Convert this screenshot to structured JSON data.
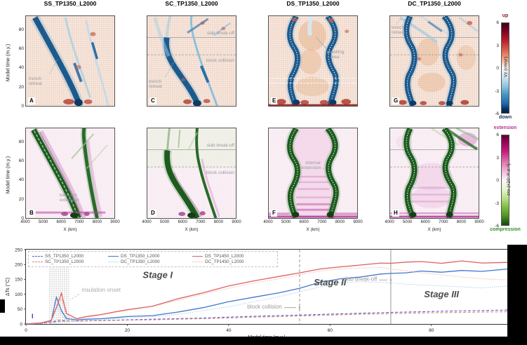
{
  "panels": [
    {
      "letter": "A",
      "title": "SS_TP1350_L2000"
    },
    {
      "letter": "C",
      "title": "SC_TP1350_L2000"
    },
    {
      "letter": "E",
      "title": "DS_TP1350_L2000"
    },
    {
      "letter": "G",
      "title": "DC_TP1350_L2000"
    },
    {
      "letter": "B"
    },
    {
      "letter": "D"
    },
    {
      "letter": "F"
    },
    {
      "letter": "H"
    }
  ],
  "annotations": {
    "trench_retreat": "trench retreat",
    "slab_breakoff": "slab break-off",
    "block_collision": "block collision",
    "upwelling_area": "upwelling area",
    "backarc_extension": "back-arc extension",
    "internal_extension": "internal extension ↓"
  },
  "axes": {
    "row_ylabel": "Model time (m.y.)",
    "row_yticks": [
      "80",
      "60",
      "40",
      "20",
      "0"
    ],
    "row_ytick_t": [
      80,
      60,
      40,
      20,
      0
    ],
    "row2_xlabel": "X (km)",
    "row2_xticks": [
      "4000",
      "5000",
      "6000",
      "7000",
      "8000",
      "9000"
    ]
  },
  "colorbars": [
    {
      "top": "up",
      "bottom": "down",
      "label": "Vz (cm/yr)",
      "ticks": [
        "6",
        "3",
        "0",
        "-3",
        "-6"
      ],
      "top_color": "#8b1a1a",
      "bottom_color": "#1f3864"
    },
    {
      "top": "extension",
      "bottom": "compression",
      "label": "ε̇xx (×10⁻¹⁶ s⁻¹)",
      "ticks": [
        "6",
        "3",
        "0",
        "-3",
        "-6"
      ],
      "top_color": "#b5339c",
      "bottom_color": "#3a8a28"
    }
  ],
  "chart_data": {
    "type": "line",
    "xlabel": "Model time (m.y.)",
    "ylabel": "ΔTs (°C)",
    "xlim": [
      0,
      95
    ],
    "ylim": [
      0,
      250
    ],
    "xticks": [
      0,
      20,
      40,
      60,
      80
    ],
    "yticks": [
      0,
      50,
      100,
      150,
      200,
      250
    ],
    "legend_position": "top-left",
    "panel_letter": "I",
    "x": [
      0,
      3,
      5,
      6,
      7,
      8,
      10,
      12,
      15,
      18,
      20,
      25,
      30,
      35,
      40,
      45,
      50,
      54,
      58,
      62,
      66,
      70,
      72,
      75,
      78,
      82,
      86,
      90,
      95
    ],
    "series": [
      {
        "name": "SS_TP1350_L2000",
        "color": "#5b64c8",
        "style": "dashed",
        "values": [
          0,
          2,
          5,
          8,
          10,
          10,
          10,
          11,
          12,
          13,
          14,
          16,
          18,
          20,
          23,
          26,
          28,
          30,
          32,
          34,
          36,
          38,
          39,
          40,
          41,
          43,
          44,
          45,
          47
        ]
      },
      {
        "name": "SC_TP1350_L2000",
        "color": "#d98585",
        "style": "dashed",
        "values": [
          0,
          2,
          6,
          12,
          14,
          10,
          9,
          10,
          11,
          12,
          13,
          14,
          16,
          18,
          20,
          23,
          25,
          27,
          29,
          31,
          33,
          34,
          35,
          36,
          37,
          38,
          39,
          40,
          41
        ]
      },
      {
        "name": "DS_TP1350_L2000",
        "color": "#4076c9",
        "style": "solid",
        "values": [
          0,
          3,
          10,
          90,
          45,
          18,
          14,
          16,
          18,
          22,
          25,
          28,
          40,
          55,
          75,
          90,
          105,
          120,
          140,
          152,
          158,
          168,
          170,
          172,
          178,
          174,
          180,
          177,
          185
        ]
      },
      {
        "name": "DC_TP1350_L2000",
        "color": "#a9c6ef",
        "style": "dotted",
        "values": [
          0,
          2,
          8,
          60,
          32,
          12,
          10,
          12,
          14,
          18,
          20,
          24,
          32,
          45,
          58,
          75,
          92,
          108,
          125,
          138,
          142,
          140,
          138,
          134,
          131,
          128,
          125,
          121,
          128
        ]
      },
      {
        "name": "DS_TP1450_L2000",
        "color": "#dd5f5f",
        "style": "solid",
        "values": [
          0,
          4,
          12,
          55,
          103,
          35,
          18,
          25,
          32,
          42,
          48,
          60,
          85,
          105,
          128,
          145,
          160,
          172,
          185,
          192,
          198,
          205,
          204,
          208,
          210,
          204,
          212,
          205,
          207
        ]
      },
      {
        "name": "DC_TP1450_L2000",
        "color": "#f0aeae",
        "style": "dotted",
        "values": [
          0,
          3,
          10,
          48,
          85,
          25,
          15,
          22,
          30,
          40,
          45,
          58,
          80,
          100,
          120,
          138,
          152,
          165,
          178,
          185,
          188,
          190,
          185,
          179,
          172,
          165,
          158,
          152,
          148
        ]
      }
    ],
    "vlines": [
      {
        "t": 54,
        "style": "dashed",
        "label": "block collision"
      },
      {
        "t": 72,
        "style": "solid",
        "label": "slab break-off"
      }
    ],
    "band": {
      "t_start": 4.5,
      "t_end": 8.5,
      "label": "insulation onset"
    },
    "stages": [
      {
        "label": "Stage I",
        "t": 26,
        "val": 155
      },
      {
        "label": "Stage II",
        "t": 60,
        "val": 130
      },
      {
        "label": "Stage III",
        "t": 82,
        "val": 90
      }
    ]
  }
}
